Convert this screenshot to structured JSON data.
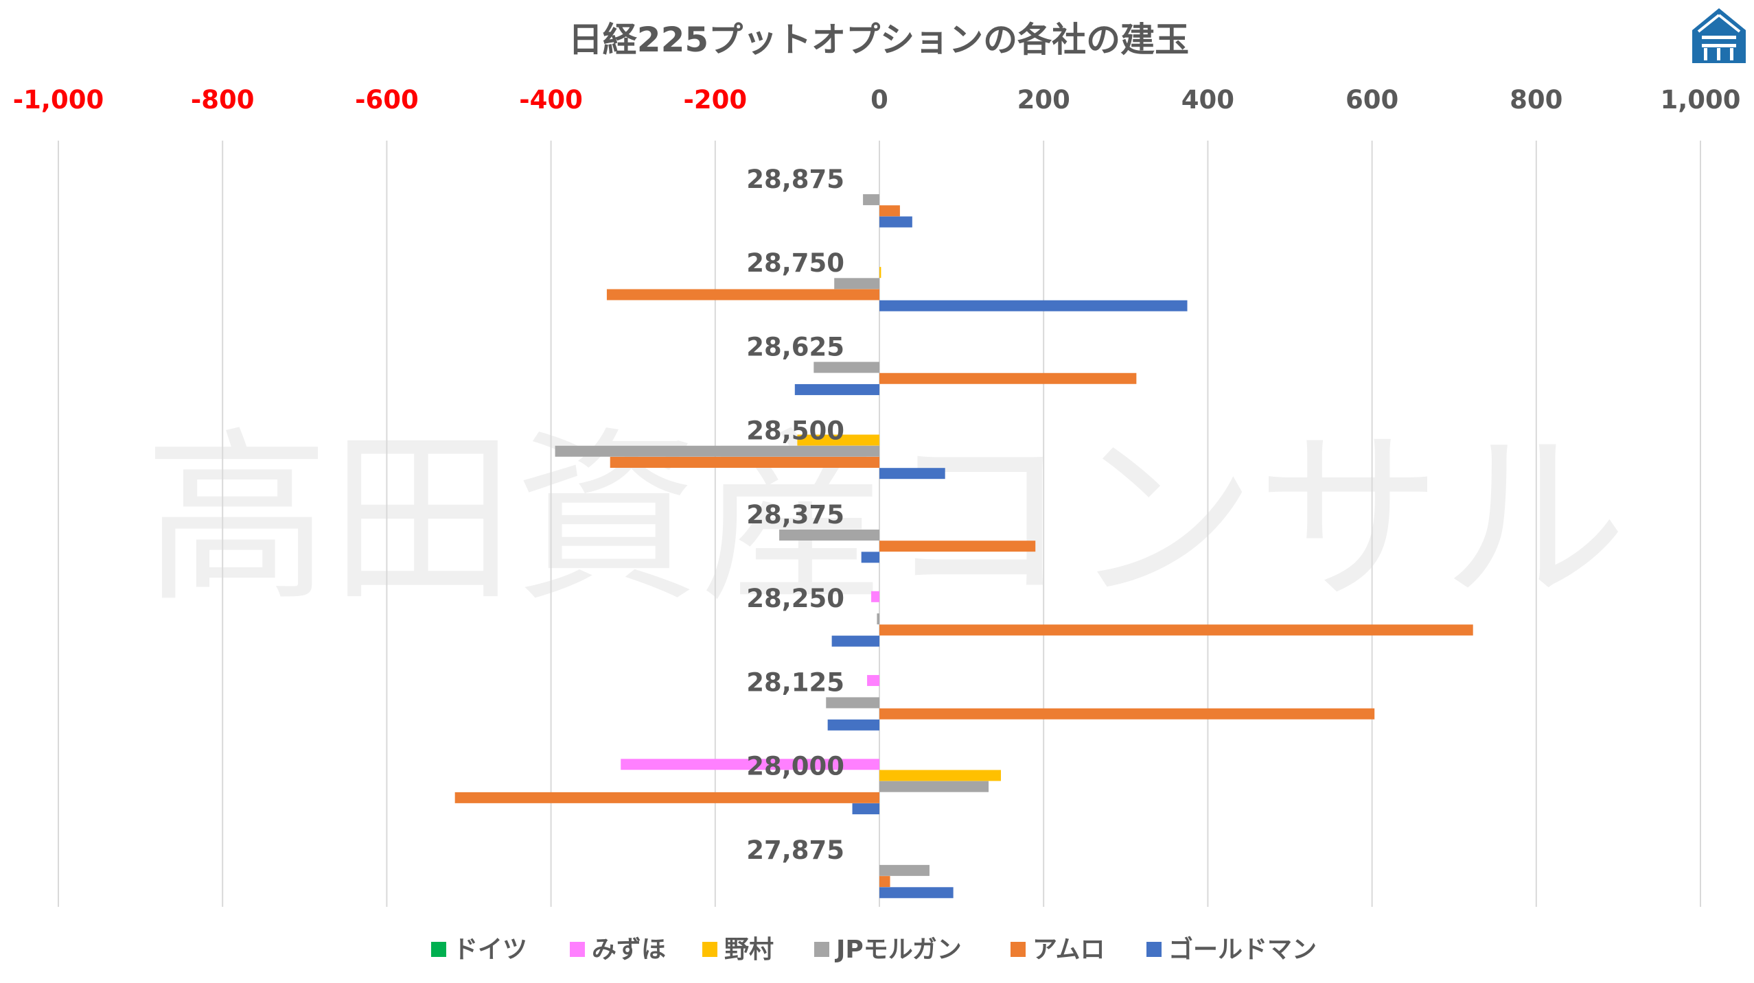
{
  "chart_data": {
    "type": "bar",
    "orientation": "horizontal",
    "title": "日経225プットオプションの各社の建玉",
    "watermark": "高田資産コンサル",
    "xlim": [
      -1000,
      1000
    ],
    "xticks": [
      -1000,
      -800,
      -600,
      -400,
      -200,
      0,
      200,
      400,
      600,
      800,
      1000
    ],
    "xtick_labels": [
      "-1,000",
      "-800",
      "-600",
      "-400",
      "-200",
      "0",
      "200",
      "400",
      "600",
      "800",
      "1,000"
    ],
    "negative_tick_color": "#ff0000",
    "positive_tick_color": "#595959",
    "grid": true,
    "legend_position": "bottom",
    "categories": [
      "28,875",
      "28,750",
      "28,625",
      "28,500",
      "28,375",
      "28,250",
      "28,125",
      "28,000",
      "27,875"
    ],
    "series": [
      {
        "name": "ドイツ",
        "color": "#00b050",
        "values": [
          0,
          0,
          0,
          0,
          0,
          0,
          0,
          0,
          0
        ]
      },
      {
        "name": "みずほ",
        "color": "#ff80ff",
        "values": [
          0,
          0,
          0,
          0,
          0,
          -10,
          -15,
          -315,
          0
        ]
      },
      {
        "name": "野村",
        "color": "#ffc000",
        "values": [
          0,
          2,
          0,
          -100,
          0,
          0,
          0,
          148,
          0
        ]
      },
      {
        "name": "JPモルガン",
        "color": "#a5a5a5",
        "values": [
          -20,
          -55,
          -80,
          -395,
          -122,
          -3,
          -65,
          133,
          61
        ]
      },
      {
        "name": "アムロ",
        "color": "#ed7d31",
        "values": [
          25,
          -332,
          313,
          -328,
          190,
          723,
          603,
          -517,
          13
        ]
      },
      {
        "name": "ゴールドマン",
        "color": "#4472c4",
        "values": [
          40,
          375,
          -103,
          80,
          -22,
          -58,
          -63,
          -33,
          90
        ]
      }
    ]
  }
}
